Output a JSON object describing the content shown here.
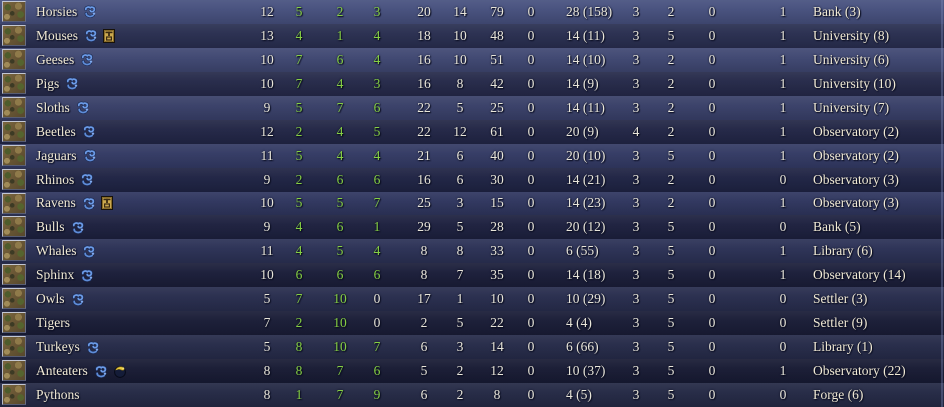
{
  "table": {
    "rows": [
      {
        "name": "Horsies",
        "icons": [
          "religion"
        ],
        "values": [
          "12",
          "5",
          "2",
          "3",
          "20",
          "14",
          "79",
          "0",
          "28 (158)",
          "3",
          "2",
          "0",
          "1"
        ],
        "production": "Bank (3)"
      },
      {
        "name": "Mouses",
        "icons": [
          "religion",
          "shrine"
        ],
        "values": [
          "13",
          "4",
          "1",
          "4",
          "18",
          "10",
          "48",
          "0",
          "14 (11)",
          "3",
          "5",
          "0",
          "1"
        ],
        "production": "University (8)"
      },
      {
        "name": "Geeses",
        "icons": [
          "religion"
        ],
        "values": [
          "10",
          "7",
          "6",
          "4",
          "16",
          "10",
          "51",
          "0",
          "14 (10)",
          "3",
          "2",
          "0",
          "1"
        ],
        "production": "University (6)"
      },
      {
        "name": "Pigs",
        "icons": [
          "religion"
        ],
        "values": [
          "10",
          "7",
          "4",
          "3",
          "16",
          "8",
          "42",
          "0",
          "14 (9)",
          "3",
          "2",
          "0",
          "1"
        ],
        "production": "University (10)"
      },
      {
        "name": "Sloths",
        "icons": [
          "religion"
        ],
        "values": [
          "9",
          "5",
          "7",
          "6",
          "22",
          "5",
          "25",
          "0",
          "14 (11)",
          "3",
          "2",
          "0",
          "1"
        ],
        "production": "University (7)"
      },
      {
        "name": "Beetles",
        "icons": [
          "religion"
        ],
        "values": [
          "12",
          "2",
          "4",
          "5",
          "22",
          "12",
          "61",
          "0",
          "20 (9)",
          "4",
          "2",
          "0",
          "1"
        ],
        "production": "Observatory (2)"
      },
      {
        "name": "Jaguars",
        "icons": [
          "religion"
        ],
        "values": [
          "11",
          "5",
          "4",
          "4",
          "21",
          "6",
          "40",
          "0",
          "20 (10)",
          "3",
          "5",
          "0",
          "1"
        ],
        "production": "Observatory (2)"
      },
      {
        "name": "Rhinos",
        "icons": [
          "religion"
        ],
        "values": [
          "9",
          "2",
          "6",
          "6",
          "16",
          "6",
          "30",
          "0",
          "14 (21)",
          "3",
          "2",
          "0",
          "0"
        ],
        "production": "Observatory (3)"
      },
      {
        "name": "Ravens",
        "icons": [
          "religion",
          "shrine"
        ],
        "values": [
          "10",
          "5",
          "5",
          "7",
          "25",
          "3",
          "15",
          "0",
          "14 (23)",
          "3",
          "2",
          "0",
          "1"
        ],
        "production": "Observatory (3)"
      },
      {
        "name": "Bulls",
        "icons": [
          "religion"
        ],
        "values": [
          "9",
          "4",
          "6",
          "1",
          "29",
          "5",
          "28",
          "0",
          "20 (12)",
          "3",
          "5",
          "0",
          "0"
        ],
        "production": "Bank (5)"
      },
      {
        "name": "Whales",
        "icons": [
          "religion"
        ],
        "values": [
          "11",
          "4",
          "5",
          "4",
          "8",
          "8",
          "33",
          "0",
          "6 (55)",
          "3",
          "5",
          "0",
          "1"
        ],
        "production": "Library (6)"
      },
      {
        "name": "Sphinx",
        "icons": [
          "religion"
        ],
        "values": [
          "10",
          "6",
          "6",
          "6",
          "8",
          "7",
          "35",
          "0",
          "14 (18)",
          "3",
          "5",
          "0",
          "1"
        ],
        "production": "Observatory (14)"
      },
      {
        "name": "Owls",
        "icons": [
          "religion"
        ],
        "values": [
          "5",
          "7",
          "10",
          "0",
          "17",
          "1",
          "10",
          "0",
          "10 (29)",
          "3",
          "5",
          "0",
          "0"
        ],
        "production": "Settler (3)"
      },
      {
        "name": "Tigers",
        "icons": [],
        "values": [
          "7",
          "2",
          "10",
          "0",
          "2",
          "5",
          "22",
          "0",
          "4 (4)",
          "3",
          "5",
          "0",
          "0"
        ],
        "production": "Settler (9)"
      },
      {
        "name": "Turkeys",
        "icons": [
          "religion"
        ],
        "values": [
          "5",
          "8",
          "10",
          "7",
          "6",
          "3",
          "14",
          "0",
          "6 (66)",
          "3",
          "5",
          "0",
          "0"
        ],
        "production": "Library (1)"
      },
      {
        "name": "Anteaters",
        "icons": [
          "religion",
          "golden"
        ],
        "values": [
          "8",
          "8",
          "7",
          "6",
          "5",
          "2",
          "12",
          "0",
          "10 (37)",
          "3",
          "5",
          "0",
          "1"
        ],
        "production": "Observatory (22)"
      },
      {
        "name": "Pythons",
        "icons": [],
        "values": [
          "8",
          "1",
          "7",
          "9",
          "6",
          "2",
          "8",
          "0",
          "4 (5)",
          "3",
          "5",
          "0",
          "0"
        ],
        "production": "Forge (6)"
      }
    ]
  },
  "colors": {
    "green_number": "#85cf43",
    "white_number": "#e9e6da",
    "name_text": "#f1ead5",
    "row_light": "#3a4169",
    "row_dark": "#232843"
  }
}
